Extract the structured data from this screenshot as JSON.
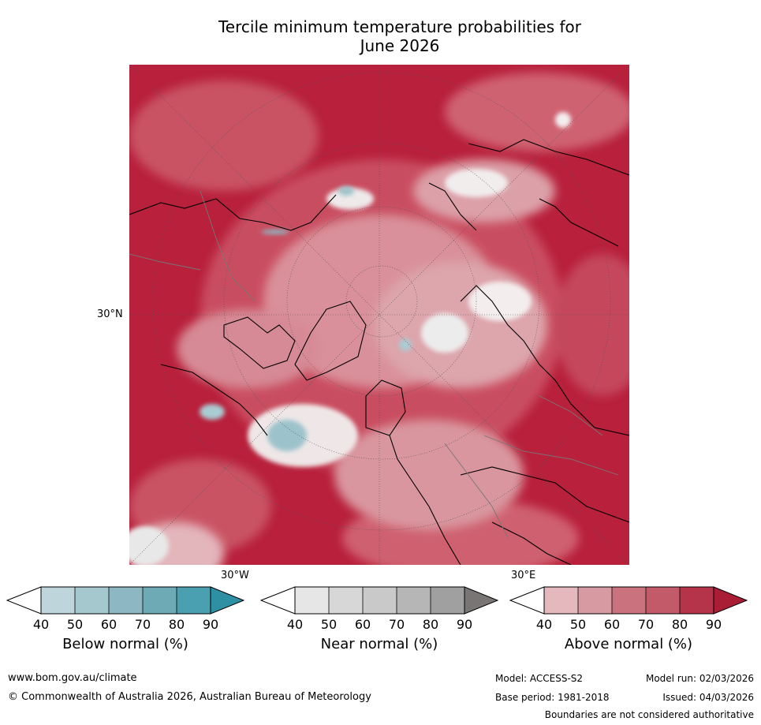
{
  "title": {
    "line1": "Tercile minimum temperature probabilities for",
    "line2": "June 2026"
  },
  "map": {
    "lat_label": "30°N",
    "lon_label_left": "30°W",
    "lon_label_right": "30°E",
    "projection": "north-polar-stereographic",
    "background_color": "#c8253f"
  },
  "colorbars": [
    {
      "caption": "Below normal (%)",
      "ticks": [
        "40",
        "50",
        "60",
        "70",
        "80",
        "90"
      ],
      "colors": [
        "#ffffff",
        "#bdd5db",
        "#a5c7ce",
        "#8db7c2",
        "#6eaab6",
        "#4a9fb0",
        "#2f8fa3"
      ]
    },
    {
      "caption": "Near normal (%)",
      "ticks": [
        "40",
        "50",
        "60",
        "70",
        "80",
        "90"
      ],
      "colors": [
        "#ffffff",
        "#e6e6e6",
        "#d7d7d7",
        "#c9c9c9",
        "#b6b6b6",
        "#a0a0a0",
        "#7a7575"
      ]
    },
    {
      "caption": "Above normal (%)",
      "ticks": [
        "40",
        "50",
        "60",
        "70",
        "80",
        "90"
      ],
      "colors": [
        "#ffffff",
        "#e4b8bd",
        "#d89aa2",
        "#ca737e",
        "#c35a69",
        "#b6344a",
        "#a91d35"
      ]
    }
  ],
  "footer": {
    "website": "www.bom.gov.au/climate",
    "copyright": "© Commonwealth of Australia 2026, Australian Bureau of Meteorology",
    "model": "Model: ACCESS-S2",
    "model_run": "Model run: 02/03/2026",
    "base_period": "Base period: 1981-2018",
    "issued": "Issued: 04/03/2026",
    "disclaimer": "Boundaries are not considered authoritative"
  }
}
